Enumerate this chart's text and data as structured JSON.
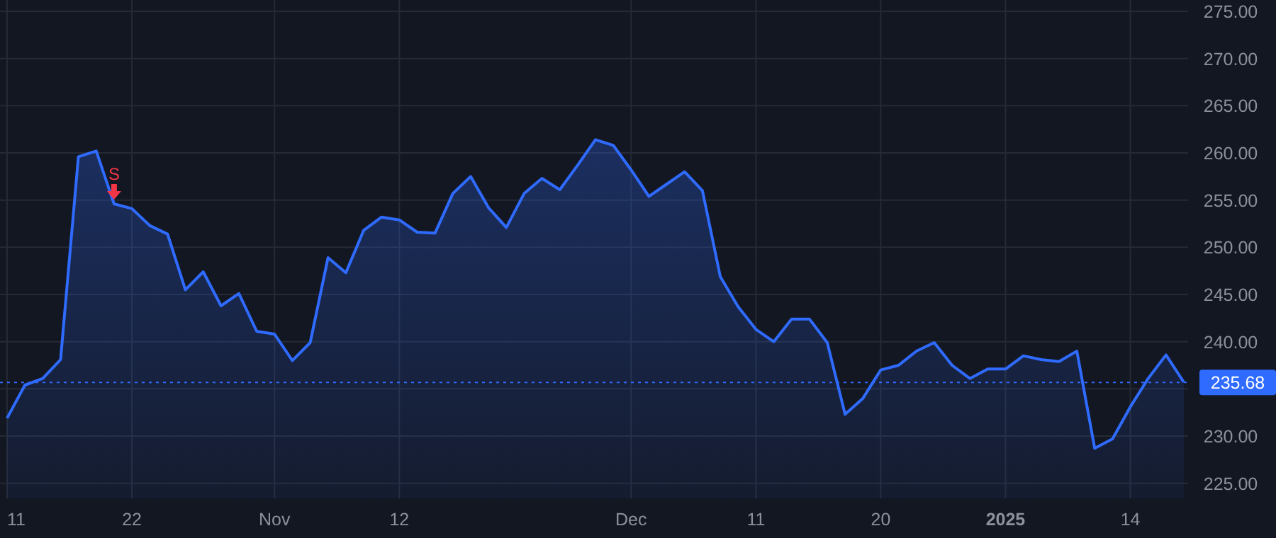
{
  "chart_data": {
    "type": "area",
    "categories": [
      "11",
      null,
      null,
      null,
      null,
      null,
      null,
      "22",
      null,
      null,
      null,
      null,
      null,
      null,
      null,
      "Nov",
      null,
      null,
      null,
      null,
      null,
      null,
      "12",
      null,
      null,
      null,
      null,
      null,
      null,
      null,
      null,
      null,
      null,
      null,
      null,
      "Dec",
      null,
      null,
      null,
      null,
      null,
      null,
      "11",
      null,
      null,
      null,
      null,
      null,
      null,
      "20",
      null,
      null,
      null,
      null,
      null,
      null,
      "2025",
      null,
      null,
      null,
      null,
      null,
      null,
      "14",
      null,
      null,
      null
    ],
    "series": [
      {
        "color": "#2f6bff",
        "values": [
          231.9,
          235.4,
          236.1,
          238.1,
          259.6,
          260.2,
          254.6,
          254.1,
          252.3,
          251.4,
          245.5,
          247.4,
          243.8,
          245.1,
          241.1,
          240.8,
          238.0,
          239.9,
          248.9,
          247.3,
          251.8,
          253.2,
          252.9,
          251.6,
          251.5,
          255.7,
          257.5,
          254.2,
          252.1,
          255.7,
          257.3,
          256.1,
          258.7,
          261.4,
          260.8,
          258.2,
          255.4,
          256.7,
          258.0,
          256.0,
          246.9,
          243.7,
          241.3,
          240.0,
          242.4,
          242.4,
          239.9,
          232.3,
          234.0,
          237.0,
          237.5,
          239.0,
          239.9,
          237.5,
          236.1,
          237.1,
          237.1,
          238.5,
          238.1,
          237.9,
          239.0,
          228.7,
          229.7,
          233.1,
          236.1,
          238.6,
          235.7
        ]
      }
    ],
    "ylim": [
      223.4,
      276.2
    ],
    "yticks": [
      {
        "value": 225,
        "label": "225.00"
      },
      {
        "value": 230,
        "label": "230.00"
      },
      {
        "value": 235,
        "label": null
      },
      {
        "value": 240,
        "label": "240.00"
      },
      {
        "value": 245,
        "label": "245.00"
      },
      {
        "value": 250,
        "label": "250.00"
      },
      {
        "value": 255,
        "label": "255.00"
      },
      {
        "value": 260,
        "label": "260.00"
      },
      {
        "value": 265,
        "label": "265.00"
      },
      {
        "value": 270,
        "label": "270.00"
      },
      {
        "value": 275,
        "label": "275.00"
      }
    ],
    "ref_lines": [
      {
        "axis": "y",
        "value": 235.68,
        "label": "235.68",
        "color": "#2f6bff",
        "line_style": "dotted"
      }
    ],
    "annotations": [
      {
        "text": "S",
        "y": 254.6
      }
    ],
    "grid": true,
    "line_style": "solid"
  }
}
